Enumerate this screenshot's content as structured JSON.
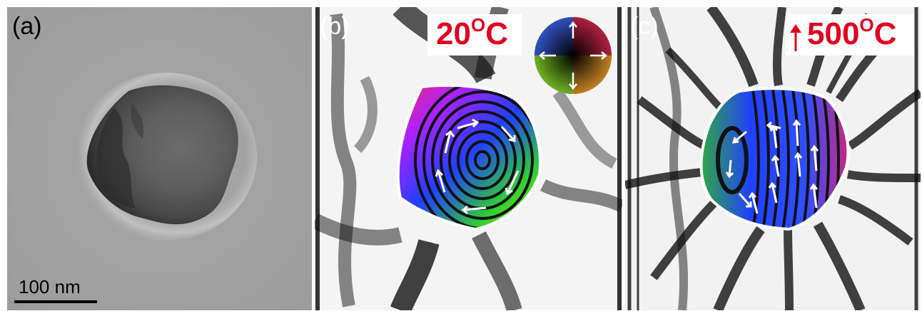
{
  "panels": [
    {
      "label": "(a)"
    },
    {
      "label": "(b)",
      "temperature": "20",
      "temp_sup": "O",
      "temp_unit": "C"
    },
    {
      "label": "(c)",
      "temperature": "500",
      "temp_sup": "O",
      "temp_unit": "C"
    }
  ],
  "scale_bar": "100 nm",
  "colors": {
    "temperature_text": "#e0001f",
    "outline": "#ffffff"
  },
  "icons": [
    "color-wheel-icon",
    "up-arrow-icon"
  ]
}
